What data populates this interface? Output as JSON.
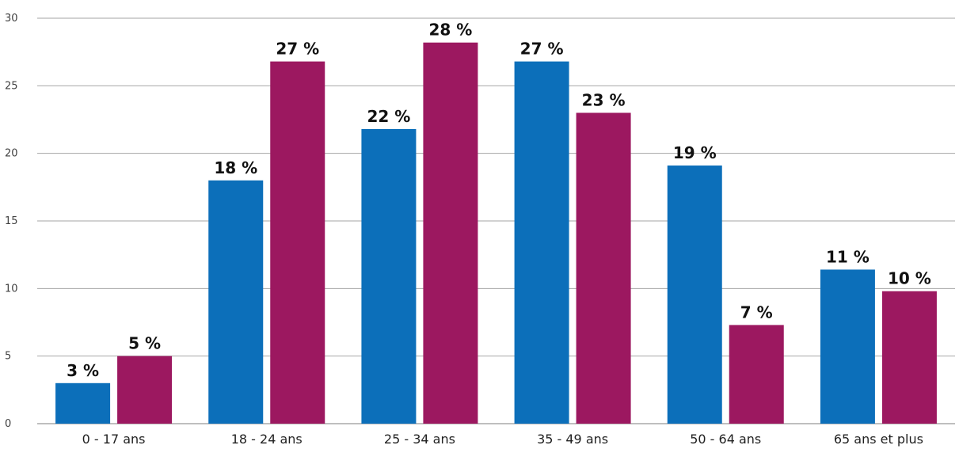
{
  "chart_data": {
    "type": "bar",
    "title": "",
    "xlabel": "",
    "ylabel": "",
    "categories": [
      "0 - 17 ans",
      "18 - 24 ans",
      "25 - 34 ans",
      "35 - 49 ans",
      "50 - 64 ans",
      "65 ans et plus"
    ],
    "series": [
      {
        "color": "#0c6fba",
        "values": [
          3,
          18,
          21.8,
          26.8,
          19.1,
          11.4
        ],
        "labels": [
          "3 %",
          "18 %",
          "22 %",
          "27 %",
          "19 %",
          "11 %"
        ]
      },
      {
        "color": "#9c1860",
        "values": [
          5,
          26.8,
          28.2,
          23,
          7.3,
          9.8
        ],
        "labels": [
          "5 %",
          "27 %",
          "28 %",
          "23 %",
          "7 %",
          "10 %"
        ]
      }
    ],
    "ylim": [
      0,
      30
    ],
    "yticks": [
      0,
      5,
      10,
      15,
      20,
      25,
      30
    ],
    "grid": true,
    "legend": "none"
  }
}
